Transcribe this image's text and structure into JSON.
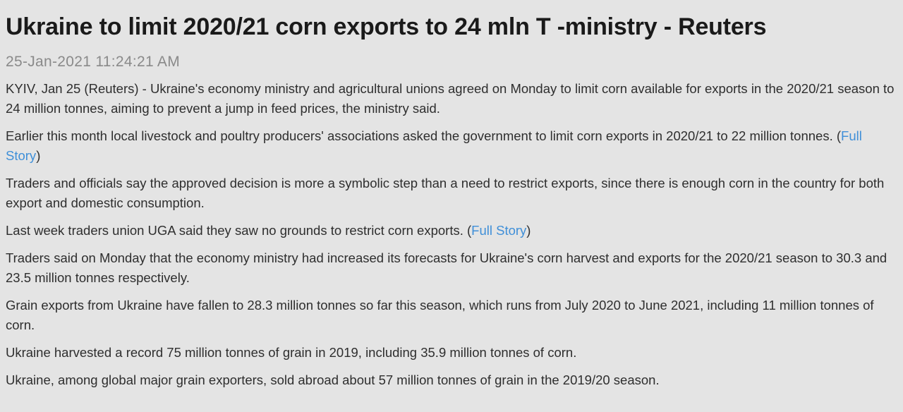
{
  "article": {
    "headline": "Ukraine to limit 2020/21 corn exports to 24 mln T -ministry - Reuters",
    "timestamp": "25-Jan-2021 11:24:21 AM",
    "paragraphs": {
      "p1": "KYIV, Jan 25 (Reuters) - Ukraine's economy ministry and agricultural unions agreed on Monday to limit corn available for exports in the 2020/21 season to 24 million tonnes, aiming to prevent a jump in feed prices, the ministry said.",
      "p2": {
        "text": "Earlier this month local livestock and poultry producers' associations asked the government to limit corn exports in 2020/21 to 22 million tonnes. (",
        "link": "Full Story",
        "after": ")"
      },
      "p3": "Traders and officials say the approved decision is more a symbolic step than a need to restrict exports, since there is enough corn in the country for both export and domestic consumption.",
      "p4": {
        "text": "Last week traders union UGA said they saw no grounds to restrict corn exports. (",
        "link": "Full Story",
        "after": ")"
      },
      "p5": "Traders said on Monday that the economy ministry had increased its forecasts for Ukraine's corn harvest and exports for the 2020/21 season to 30.3 and 23.5 million tonnes respectively.",
      "p6": "Grain exports from Ukraine have fallen to 28.3 million tonnes so far this season, which runs from July 2020 to June 2021, including 11 million tonnes of corn.",
      "p7": "Ukraine harvested a record 75 million tonnes of grain in 2019, including 35.9 million tonnes of corn.",
      "p8": "Ukraine, among global major grain exporters, sold abroad about 57 million tonnes of grain in the 2019/20 season."
    }
  },
  "colors": {
    "background": "#e4e4e4",
    "text": "#2e2e2e",
    "timestamp": "#8a8a8a",
    "link": "#3f8fd8"
  }
}
